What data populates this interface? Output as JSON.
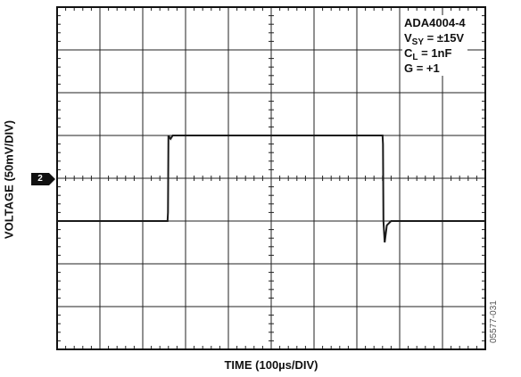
{
  "chart_data": {
    "type": "line",
    "title": "",
    "xlabel": "TIME (100µs/DIV)",
    "ylabel": "VOLTAGE (50mV/DIV)",
    "x_unit": "µs",
    "y_unit": "mV",
    "xlim": [
      0,
      1000
    ],
    "ylim": [
      -200,
      200
    ],
    "grid": true,
    "channel_marker": "2",
    "annotation": {
      "part": "ADA4004-4",
      "vsy_label": "V",
      "vsy_sub": "SY",
      "vsy_value": " = ±15V",
      "cl_label": "C",
      "cl_sub": "L",
      "cl_value": " = 1nF",
      "gain": "G = +1"
    },
    "series": [
      {
        "x": [
          0,
          258,
          259,
          260,
          262,
          265,
          270,
          280,
          300,
          400,
          500,
          600,
          700,
          760,
          761,
          762,
          765,
          770,
          780,
          800,
          900,
          1000
        ],
        "y": [
          -50,
          -50,
          -40,
          50,
          48,
          46,
          50,
          50,
          50,
          50,
          50,
          50,
          50,
          50,
          40,
          -50,
          -75,
          -55,
          -50,
          -50,
          -50,
          -50
        ]
      }
    ]
  },
  "figure_code": "05577-031"
}
